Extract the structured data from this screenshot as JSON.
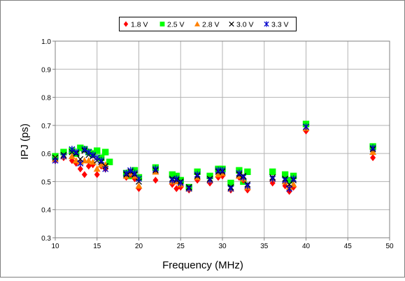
{
  "chart_data": {
    "type": "scatter",
    "title": "",
    "xlabel": "Frequency (MHz)",
    "ylabel": "IPJ (ps)",
    "xlim": [
      10,
      50
    ],
    "ylim": [
      0.3,
      1.0
    ],
    "x_ticks": [
      "10",
      "15",
      "20",
      "25",
      "30",
      "35",
      "40",
      "45",
      "50"
    ],
    "y_ticks": [
      "0.3",
      "0.4",
      "0.5",
      "0.6",
      "0.7",
      "0.8",
      "0.9",
      "1.0"
    ],
    "grid": true,
    "legend_position": "top-center",
    "series": [
      {
        "name": "1.8 V",
        "marker": "diamond",
        "color": "#ff0000",
        "points": [
          [
            10,
            0.575
          ],
          [
            11,
            0.585
          ],
          [
            12,
            0.575
          ],
          [
            12.5,
            0.565
          ],
          [
            13,
            0.545
          ],
          [
            13.5,
            0.525
          ],
          [
            14,
            0.555
          ],
          [
            14.5,
            0.56
          ],
          [
            15,
            0.525
          ],
          [
            15.5,
            0.555
          ],
          [
            16,
            0.545
          ],
          [
            18.5,
            0.515
          ],
          [
            19,
            0.525
          ],
          [
            19.5,
            0.51
          ],
          [
            20,
            0.475
          ],
          [
            22,
            0.505
          ],
          [
            24,
            0.49
          ],
          [
            24.5,
            0.475
          ],
          [
            25,
            0.48
          ],
          [
            26,
            0.47
          ],
          [
            27,
            0.505
          ],
          [
            28.5,
            0.495
          ],
          [
            29.5,
            0.515
          ],
          [
            30,
            0.52
          ],
          [
            31,
            0.47
          ],
          [
            32,
            0.515
          ],
          [
            32.5,
            0.505
          ],
          [
            33,
            0.47
          ],
          [
            36,
            0.495
          ],
          [
            37.5,
            0.485
          ],
          [
            38,
            0.465
          ],
          [
            38.5,
            0.48
          ],
          [
            40,
            0.68
          ],
          [
            48,
            0.585
          ]
        ]
      },
      {
        "name": "2.5 V",
        "marker": "square",
        "color": "#00ff00",
        "points": [
          [
            10,
            0.59
          ],
          [
            11,
            0.605
          ],
          [
            12,
            0.61
          ],
          [
            12.5,
            0.6
          ],
          [
            13,
            0.62
          ],
          [
            13.5,
            0.615
          ],
          [
            14,
            0.605
          ],
          [
            14.5,
            0.6
          ],
          [
            15,
            0.61
          ],
          [
            15.5,
            0.585
          ],
          [
            16,
            0.605
          ],
          [
            16.5,
            0.57
          ],
          [
            18.5,
            0.53
          ],
          [
            19,
            0.52
          ],
          [
            19.5,
            0.54
          ],
          [
            20,
            0.515
          ],
          [
            22,
            0.55
          ],
          [
            24,
            0.525
          ],
          [
            24.5,
            0.52
          ],
          [
            25,
            0.505
          ],
          [
            26,
            0.48
          ],
          [
            27,
            0.535
          ],
          [
            28.5,
            0.52
          ],
          [
            29.5,
            0.545
          ],
          [
            30,
            0.545
          ],
          [
            31,
            0.495
          ],
          [
            32,
            0.54
          ],
          [
            32.5,
            0.5
          ],
          [
            33,
            0.535
          ],
          [
            36,
            0.535
          ],
          [
            37.5,
            0.525
          ],
          [
            38,
            0.505
          ],
          [
            38.5,
            0.52
          ],
          [
            40,
            0.705
          ],
          [
            48,
            0.625
          ]
        ]
      },
      {
        "name": "2.8 V",
        "marker": "triangle",
        "color": "#ff8000",
        "points": [
          [
            10,
            0.58
          ],
          [
            11,
            0.59
          ],
          [
            12,
            0.59
          ],
          [
            12.5,
            0.575
          ],
          [
            13,
            0.57
          ],
          [
            13.5,
            0.575
          ],
          [
            14,
            0.575
          ],
          [
            14.5,
            0.57
          ],
          [
            15,
            0.545
          ],
          [
            15.5,
            0.56
          ],
          [
            16,
            0.56
          ],
          [
            18.5,
            0.52
          ],
          [
            19,
            0.53
          ],
          [
            19.5,
            0.52
          ],
          [
            20,
            0.485
          ],
          [
            22,
            0.535
          ],
          [
            24,
            0.5
          ],
          [
            24.5,
            0.5
          ],
          [
            25,
            0.49
          ],
          [
            26,
            0.475
          ],
          [
            27,
            0.515
          ],
          [
            28.5,
            0.505
          ],
          [
            29.5,
            0.525
          ],
          [
            30,
            0.53
          ],
          [
            31,
            0.475
          ],
          [
            32,
            0.52
          ],
          [
            32.5,
            0.51
          ],
          [
            33,
            0.48
          ],
          [
            36,
            0.51
          ],
          [
            37.5,
            0.5
          ],
          [
            38,
            0.48
          ],
          [
            38.5,
            0.49
          ],
          [
            40,
            0.69
          ],
          [
            48,
            0.605
          ]
        ]
      },
      {
        "name": "3.0 V",
        "marker": "x",
        "color": "#000000",
        "points": [
          [
            10,
            0.585
          ],
          [
            11,
            0.595
          ],
          [
            12,
            0.605
          ],
          [
            12.5,
            0.6
          ],
          [
            13,
            0.58
          ],
          [
            13.5,
            0.61
          ],
          [
            14,
            0.595
          ],
          [
            14.5,
            0.59
          ],
          [
            15,
            0.575
          ],
          [
            15.5,
            0.57
          ],
          [
            16,
            0.555
          ],
          [
            18.5,
            0.525
          ],
          [
            19,
            0.535
          ],
          [
            19.5,
            0.525
          ],
          [
            20,
            0.5
          ],
          [
            22,
            0.54
          ],
          [
            24,
            0.51
          ],
          [
            24.5,
            0.505
          ],
          [
            25,
            0.5
          ],
          [
            26,
            0.48
          ],
          [
            27,
            0.52
          ],
          [
            28.5,
            0.51
          ],
          [
            29.5,
            0.535
          ],
          [
            30,
            0.535
          ],
          [
            31,
            0.48
          ],
          [
            32,
            0.525
          ],
          [
            32.5,
            0.52
          ],
          [
            33,
            0.49
          ],
          [
            36,
            0.515
          ],
          [
            37.5,
            0.51
          ],
          [
            38,
            0.49
          ],
          [
            38.5,
            0.505
          ],
          [
            40,
            0.695
          ],
          [
            48,
            0.615
          ]
        ]
      },
      {
        "name": "3.3 V",
        "marker": "asterisk",
        "color": "#0000cc",
        "points": [
          [
            10,
            0.575
          ],
          [
            11,
            0.59
          ],
          [
            12,
            0.615
          ],
          [
            12.5,
            0.605
          ],
          [
            13,
            0.565
          ],
          [
            13.5,
            0.615
          ],
          [
            14,
            0.605
          ],
          [
            14.5,
            0.595
          ],
          [
            15,
            0.585
          ],
          [
            15.5,
            0.575
          ],
          [
            16,
            0.545
          ],
          [
            18.5,
            0.53
          ],
          [
            19,
            0.54
          ],
          [
            19.5,
            0.53
          ],
          [
            20,
            0.51
          ],
          [
            22,
            0.545
          ],
          [
            24,
            0.505
          ],
          [
            24.5,
            0.51
          ],
          [
            25,
            0.495
          ],
          [
            26,
            0.475
          ],
          [
            27,
            0.525
          ],
          [
            28.5,
            0.505
          ],
          [
            29.5,
            0.54
          ],
          [
            30,
            0.54
          ],
          [
            31,
            0.475
          ],
          [
            32,
            0.53
          ],
          [
            32.5,
            0.515
          ],
          [
            33,
            0.485
          ],
          [
            36,
            0.51
          ],
          [
            37.5,
            0.505
          ],
          [
            38,
            0.475
          ],
          [
            38.5,
            0.51
          ],
          [
            40,
            0.695
          ],
          [
            48,
            0.62
          ]
        ]
      }
    ]
  }
}
